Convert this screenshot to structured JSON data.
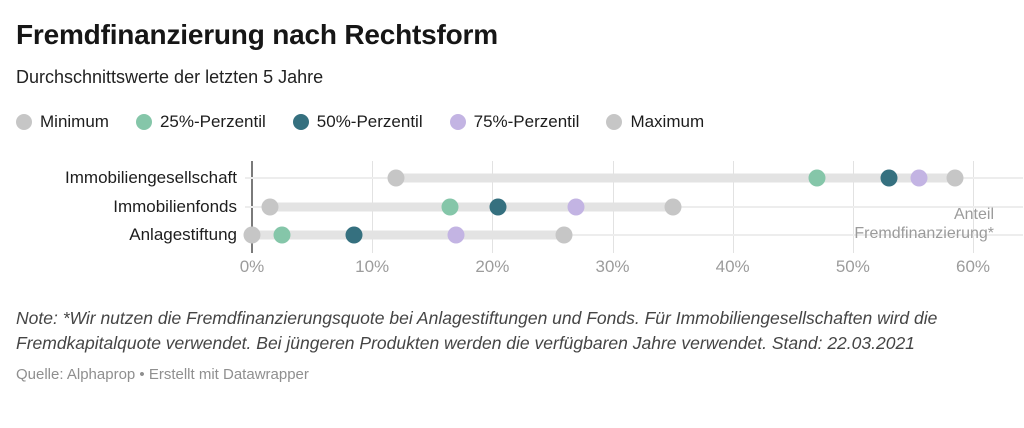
{
  "header": {
    "title": "Fremdfinanzierung nach Rechtsform",
    "subtitle": "Durchschnittswerte der letzten 5 Jahre"
  },
  "colors": {
    "minimum": "#c6c6c6",
    "p25": "#85c6a9",
    "p50": "#35707f",
    "p75": "#c3b4e3",
    "maximum": "#c6c6c6",
    "range_bar": "#e3e3e3",
    "row_line": "#ededed",
    "gridline": "#e2e2e2",
    "zero_line": "#7a7a7a",
    "tick_text": "#9c9c9c"
  },
  "legend": [
    {
      "label": "Minimum",
      "color_key": "minimum"
    },
    {
      "label": "25%-Perzentil",
      "color_key": "p25"
    },
    {
      "label": "50%-Perzentil",
      "color_key": "p50"
    },
    {
      "label": "75%-Perzentil",
      "color_key": "p75"
    },
    {
      "label": "Maximum",
      "color_key": "maximum"
    }
  ],
  "chart_data": {
    "type": "scatter",
    "subtype": "dot-range-plot",
    "unit": "%",
    "x_axis": {
      "min": 0,
      "max": 60,
      "tick_step": 10,
      "tick_labels": [
        "0%",
        "10%",
        "20%",
        "30%",
        "40%",
        "50%",
        "60%"
      ],
      "grid": true
    },
    "series_keys": [
      "minimum",
      "p25",
      "p50",
      "p75",
      "maximum"
    ],
    "rows": [
      {
        "label": "Immobiliengesellschaft",
        "minimum": 12,
        "p25": 47,
        "p50": 53,
        "p75": 55.5,
        "maximum": 58.5
      },
      {
        "label": "Immobilienfonds",
        "minimum": 1.5,
        "p25": 16.5,
        "p50": 20.5,
        "p75": 27,
        "maximum": 35
      },
      {
        "label": "Anlagestiftung",
        "minimum": 0,
        "p25": 2.5,
        "p50": 8.5,
        "p75": 17,
        "maximum": 26
      }
    ],
    "axis_annotation": [
      "Anteil",
      "Fremdfinanzierung*"
    ],
    "legend_position": "top"
  },
  "footer": {
    "note": "Note: *Wir nutzen die Fremdfinanzierungsquote bei Anlagestiftungen und Fonds. Für Immobiliengesellschaften wird die Fremdkapitalquote verwendet. Bei jüngeren Produkten werden die verfügbaren Jahre verwendet. Stand: 22.03.2021",
    "source": "Quelle: Alphaprop • Erstellt mit Datawrapper"
  }
}
